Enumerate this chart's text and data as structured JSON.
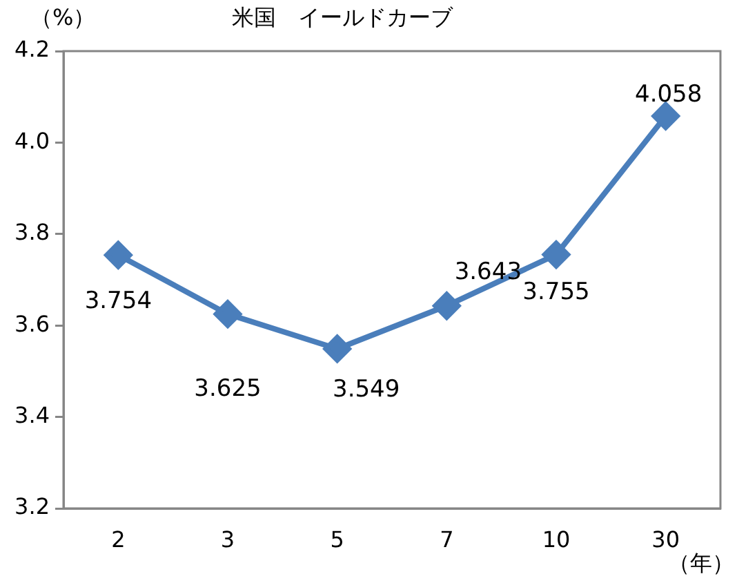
{
  "chart_data": {
    "type": "line",
    "title": "米国　イールドカーブ",
    "ylabel": "（%）",
    "xlabel": "（年）",
    "categories": [
      "2",
      "3",
      "5",
      "7",
      "10",
      "30"
    ],
    "series": [
      {
        "color": "#4a7ebb",
        "values": [
          3.754,
          3.625,
          3.549,
          3.643,
          3.755,
          4.058
        ]
      }
    ],
    "ylim": [
      3.2,
      4.2
    ],
    "yticks": [
      3.2,
      3.4,
      3.6,
      3.8,
      {
        "value": 4,
        "label": "4.0"
      },
      4.2
    ],
    "marker": "diamond",
    "line_style": "solid",
    "data_labels": true
  }
}
